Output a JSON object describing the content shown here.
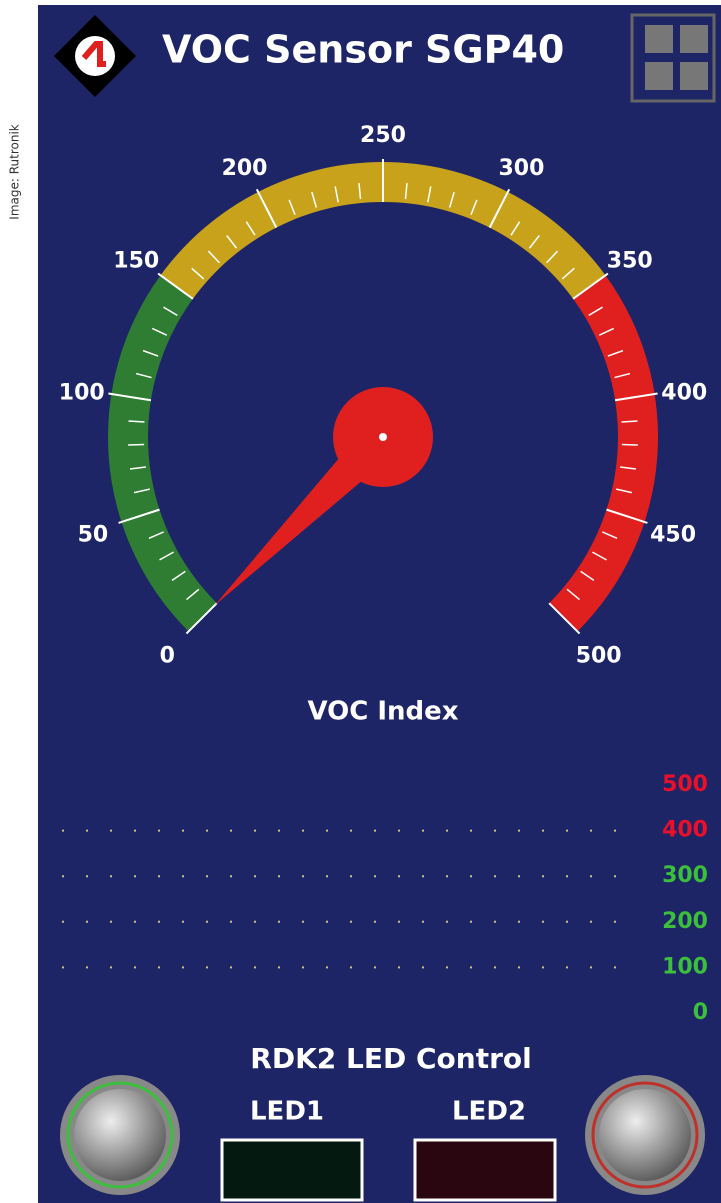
{
  "credit": "Image: Rutronik",
  "header": {
    "title": "VOC Sensor SGP40"
  },
  "gauge": {
    "title": "VOC Index",
    "min": 0,
    "max": 500,
    "value": 0,
    "minor_step": 10,
    "ticks": [
      0,
      50,
      100,
      150,
      200,
      250,
      300,
      350,
      400,
      450,
      500
    ],
    "bands": [
      {
        "from": 0,
        "to": 150,
        "color": "#2e7d32"
      },
      {
        "from": 150,
        "to": 350,
        "color": "#c9a21c"
      },
      {
        "from": 350,
        "to": 500,
        "color": "#e0201f"
      }
    ]
  },
  "trend": {
    "ylim": [
      0,
      500
    ],
    "yticks": [
      0,
      100,
      200,
      300,
      400,
      500
    ],
    "ytick_colors": [
      "#3cbf3c",
      "#3cbf3c",
      "#3cbf3c",
      "#3cbf3c",
      "#e8102a",
      "#e8102a"
    ]
  },
  "controls": {
    "title": "RDK2 LED Control",
    "led1": "LED1",
    "led2": "LED2"
  }
}
